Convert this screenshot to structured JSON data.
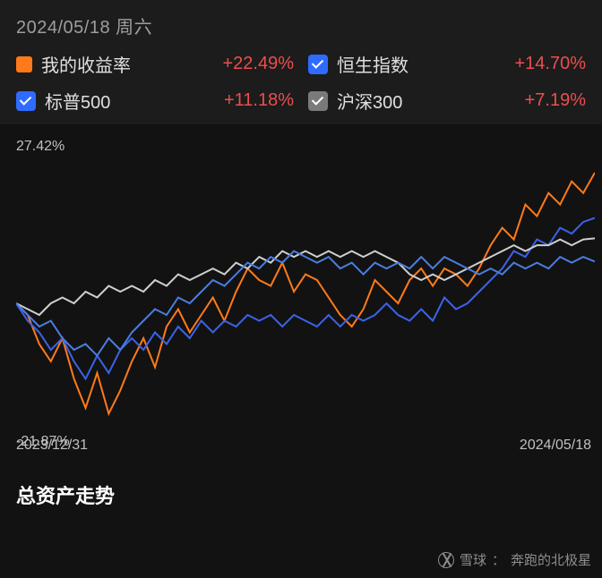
{
  "legend": {
    "date": "2024/05/18 周六",
    "items": [
      {
        "key": "my",
        "label": "我的收益率",
        "value": "+22.49%",
        "swatch_type": "square",
        "swatch_color": "#ff7a1a"
      },
      {
        "key": "hsi",
        "label": "恒生指数",
        "value": "+14.70%",
        "swatch_type": "check",
        "swatch_color": "#2f6bff"
      },
      {
        "key": "sp500",
        "label": "标普500",
        "value": "+11.18%",
        "swatch_type": "check",
        "swatch_color": "#2f6bff"
      },
      {
        "key": "csi300",
        "label": "沪深300",
        "value": "+7.19%",
        "swatch_type": "check",
        "swatch_color": "#7a7a7a"
      }
    ]
  },
  "chart": {
    "type": "line",
    "background_color": "#121212",
    "y_top_label": "27.42%",
    "y_bot_label": "-21.87%",
    "ylim": [
      -21.87,
      27.42
    ],
    "x_start_label": "2023/12/31",
    "x_end_label": "2024/05/18",
    "x_range": [
      0,
      100
    ],
    "line_width": 2,
    "series": [
      {
        "name": "my",
        "color": "#ff7a1a",
        "data": [
          [
            0,
            0
          ],
          [
            2,
            -2
          ],
          [
            4,
            -7
          ],
          [
            6,
            -10
          ],
          [
            8,
            -6
          ],
          [
            10,
            -13
          ],
          [
            12,
            -18
          ],
          [
            14,
            -12
          ],
          [
            16,
            -19
          ],
          [
            18,
            -15
          ],
          [
            20,
            -10
          ],
          [
            22,
            -6
          ],
          [
            24,
            -11
          ],
          [
            26,
            -4
          ],
          [
            28,
            -1
          ],
          [
            30,
            -5
          ],
          [
            32,
            -2
          ],
          [
            34,
            1
          ],
          [
            36,
            -3
          ],
          [
            38,
            2
          ],
          [
            40,
            6
          ],
          [
            42,
            4
          ],
          [
            44,
            3
          ],
          [
            46,
            7
          ],
          [
            48,
            2
          ],
          [
            50,
            5
          ],
          [
            52,
            4
          ],
          [
            54,
            1
          ],
          [
            56,
            -2
          ],
          [
            58,
            -4
          ],
          [
            60,
            -1
          ],
          [
            62,
            4
          ],
          [
            64,
            2
          ],
          [
            66,
            0
          ],
          [
            68,
            4
          ],
          [
            70,
            6
          ],
          [
            72,
            3
          ],
          [
            74,
            6
          ],
          [
            76,
            5
          ],
          [
            78,
            3
          ],
          [
            80,
            6
          ],
          [
            82,
            10
          ],
          [
            84,
            13
          ],
          [
            86,
            11
          ],
          [
            88,
            17
          ],
          [
            90,
            15
          ],
          [
            92,
            19
          ],
          [
            94,
            17
          ],
          [
            96,
            21
          ],
          [
            98,
            19
          ],
          [
            100,
            22.49
          ]
        ]
      },
      {
        "name": "hsi",
        "color": "#3a63e6",
        "data": [
          [
            0,
            0
          ],
          [
            2,
            -3
          ],
          [
            4,
            -5
          ],
          [
            6,
            -8
          ],
          [
            8,
            -6
          ],
          [
            10,
            -10
          ],
          [
            12,
            -13
          ],
          [
            14,
            -9
          ],
          [
            16,
            -12
          ],
          [
            18,
            -8
          ],
          [
            20,
            -6
          ],
          [
            22,
            -8
          ],
          [
            24,
            -5
          ],
          [
            26,
            -7
          ],
          [
            28,
            -4
          ],
          [
            30,
            -6
          ],
          [
            32,
            -3
          ],
          [
            34,
            -5
          ],
          [
            36,
            -3
          ],
          [
            38,
            -4
          ],
          [
            40,
            -2
          ],
          [
            42,
            -3
          ],
          [
            44,
            -2
          ],
          [
            46,
            -4
          ],
          [
            48,
            -2
          ],
          [
            50,
            -3
          ],
          [
            52,
            -4
          ],
          [
            54,
            -2
          ],
          [
            56,
            -4
          ],
          [
            58,
            -2
          ],
          [
            60,
            -3
          ],
          [
            62,
            -2
          ],
          [
            64,
            0
          ],
          [
            66,
            -2
          ],
          [
            68,
            -3
          ],
          [
            70,
            -1
          ],
          [
            72,
            -3
          ],
          [
            74,
            1
          ],
          [
            76,
            -1
          ],
          [
            78,
            0
          ],
          [
            80,
            2
          ],
          [
            82,
            4
          ],
          [
            84,
            6
          ],
          [
            86,
            9
          ],
          [
            88,
            8
          ],
          [
            90,
            11
          ],
          [
            92,
            10
          ],
          [
            94,
            13
          ],
          [
            96,
            12
          ],
          [
            98,
            14
          ],
          [
            100,
            14.7
          ]
        ]
      },
      {
        "name": "sp500",
        "color": "#cfcfcf",
        "data": [
          [
            0,
            0
          ],
          [
            2,
            -1
          ],
          [
            4,
            -2
          ],
          [
            6,
            0
          ],
          [
            8,
            1
          ],
          [
            10,
            0
          ],
          [
            12,
            2
          ],
          [
            14,
            1
          ],
          [
            16,
            3
          ],
          [
            18,
            2
          ],
          [
            20,
            3
          ],
          [
            22,
            2
          ],
          [
            24,
            4
          ],
          [
            26,
            3
          ],
          [
            28,
            5
          ],
          [
            30,
            4
          ],
          [
            32,
            5
          ],
          [
            34,
            6
          ],
          [
            36,
            5
          ],
          [
            38,
            7
          ],
          [
            40,
            6
          ],
          [
            42,
            8
          ],
          [
            44,
            7
          ],
          [
            46,
            9
          ],
          [
            48,
            8
          ],
          [
            50,
            9
          ],
          [
            52,
            8
          ],
          [
            54,
            9
          ],
          [
            56,
            8
          ],
          [
            58,
            9
          ],
          [
            60,
            8
          ],
          [
            62,
            9
          ],
          [
            64,
            8
          ],
          [
            66,
            7
          ],
          [
            68,
            5
          ],
          [
            70,
            4
          ],
          [
            72,
            5
          ],
          [
            74,
            4
          ],
          [
            76,
            5
          ],
          [
            78,
            6
          ],
          [
            80,
            7
          ],
          [
            82,
            8
          ],
          [
            84,
            9
          ],
          [
            86,
            10
          ],
          [
            88,
            9
          ],
          [
            90,
            10
          ],
          [
            92,
            10
          ],
          [
            94,
            11
          ],
          [
            96,
            10
          ],
          [
            98,
            11
          ],
          [
            100,
            11.18
          ]
        ]
      },
      {
        "name": "csi300",
        "color": "#4a7de0",
        "data": [
          [
            0,
            0
          ],
          [
            2,
            -2
          ],
          [
            4,
            -4
          ],
          [
            6,
            -3
          ],
          [
            8,
            -6
          ],
          [
            10,
            -8
          ],
          [
            12,
            -7
          ],
          [
            14,
            -9
          ],
          [
            16,
            -6
          ],
          [
            18,
            -8
          ],
          [
            20,
            -5
          ],
          [
            22,
            -3
          ],
          [
            24,
            -1
          ],
          [
            26,
            -2
          ],
          [
            28,
            1
          ],
          [
            30,
            0
          ],
          [
            32,
            2
          ],
          [
            34,
            4
          ],
          [
            36,
            3
          ],
          [
            38,
            5
          ],
          [
            40,
            7
          ],
          [
            42,
            6
          ],
          [
            44,
            8
          ],
          [
            46,
            7
          ],
          [
            48,
            9
          ],
          [
            50,
            8
          ],
          [
            52,
            7
          ],
          [
            54,
            8
          ],
          [
            56,
            6
          ],
          [
            58,
            7
          ],
          [
            60,
            5
          ],
          [
            62,
            7
          ],
          [
            64,
            6
          ],
          [
            66,
            7
          ],
          [
            68,
            6
          ],
          [
            70,
            8
          ],
          [
            72,
            6
          ],
          [
            74,
            8
          ],
          [
            76,
            7
          ],
          [
            78,
            6
          ],
          [
            80,
            5
          ],
          [
            82,
            6
          ],
          [
            84,
            5
          ],
          [
            86,
            7
          ],
          [
            88,
            6
          ],
          [
            90,
            7
          ],
          [
            92,
            6
          ],
          [
            94,
            8
          ],
          [
            96,
            7
          ],
          [
            98,
            8
          ],
          [
            100,
            7.19
          ]
        ]
      }
    ]
  },
  "section_title": "总资产走势",
  "watermark": {
    "platform": "雪球",
    "author": "奔跑的北极星"
  }
}
